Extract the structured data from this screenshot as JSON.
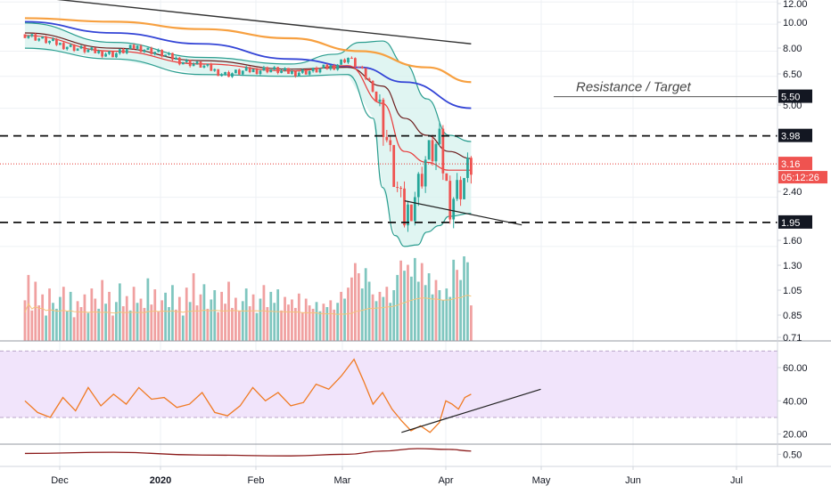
{
  "colors": {
    "background": "#ffffff",
    "grid": "#eef0f4",
    "axis_line": "#d1d4dc",
    "axis_text": "#131722",
    "up_candle": "#26a69a",
    "down_candle": "#ef5350",
    "vol_up": "#7fc6bf",
    "vol_down": "#f0a0a0",
    "ema_fast": "#e83a3a",
    "ema_slow": "#6b1c1c",
    "sma_100": "#3344d6",
    "sma_200": "#f7a040",
    "trend_long": "#333333",
    "bb_line": "#2a9d8f",
    "bb_fill": "#d6f2ee",
    "rsi_band": "#f1e4fb",
    "rsi_line": "#f07a22",
    "lower_osc": "#8b1a1a",
    "current_price_line": "#e53935",
    "label_black": "#131722",
    "label_red": "#ef5350"
  },
  "time_axis": {
    "labels": [
      "Dec",
      "2020",
      "Feb",
      "Mar",
      "Apr",
      "May",
      "Jun",
      "Jul"
    ]
  },
  "annotations": {
    "resistance_text": "Resistance / Target"
  },
  "chart_data": {
    "type": "candlestick",
    "symbol": "",
    "y_scale": "log",
    "price_range": [
      1.35,
      12.2
    ],
    "price_ticks": [
      "12.00",
      "10.00",
      "8.00",
      "6.50",
      "5.00",
      "2.40",
      "1.60",
      "1.30",
      "1.05",
      "0.85",
      "0.71"
    ],
    "price_labels": {
      "resistance": "5.50",
      "upper_level": "3.98",
      "current_price": "3.16",
      "countdown": "05:12:26",
      "lower_level": "1.95"
    },
    "horizontal_levels": [
      3.98,
      1.95
    ],
    "resistance_level": 5.5,
    "current_price": 3.16,
    "candles_x_range": [
      "2019-11-20",
      "2020-04-09"
    ],
    "close_path": [
      [
        "2019-11-20",
        9.2
      ],
      [
        "2019-11-27",
        8.7
      ],
      [
        "2019-12-04",
        8.3
      ],
      [
        "2019-12-11",
        8.0
      ],
      [
        "2019-12-18",
        7.8
      ],
      [
        "2019-12-25",
        8.3
      ],
      [
        "2020-01-01",
        7.9
      ],
      [
        "2020-01-08",
        7.4
      ],
      [
        "2020-01-15",
        7.1
      ],
      [
        "2020-01-22",
        6.6
      ],
      [
        "2020-01-29",
        6.8
      ],
      [
        "2020-02-05",
        6.9
      ],
      [
        "2020-02-12",
        6.7
      ],
      [
        "2020-02-19",
        6.8
      ],
      [
        "2020-02-26",
        7.1
      ],
      [
        "2020-03-01",
        7.6
      ],
      [
        "2020-03-05",
        6.9
      ],
      [
        "2020-03-09",
        5.9
      ],
      [
        "2020-03-12",
        4.6
      ],
      [
        "2020-03-16",
        2.7
      ],
      [
        "2020-03-19",
        2.0
      ],
      [
        "2020-03-23",
        2.6
      ],
      [
        "2020-03-26",
        3.4
      ],
      [
        "2020-03-30",
        3.7
      ],
      [
        "2020-04-02",
        2.3
      ],
      [
        "2020-04-06",
        2.7
      ],
      [
        "2020-04-09",
        3.16
      ]
    ],
    "ema_fast": [
      [
        "2019-11-20",
        9.1
      ],
      [
        "2019-12-18",
        8.0
      ],
      [
        "2020-01-15",
        7.2
      ],
      [
        "2020-02-12",
        6.8
      ],
      [
        "2020-03-01",
        7.1
      ],
      [
        "2020-03-12",
        5.2
      ],
      [
        "2020-03-19",
        3.5
      ],
      [
        "2020-03-26",
        3.2
      ],
      [
        "2020-04-02",
        3.0
      ],
      [
        "2020-04-09",
        3.0
      ]
    ],
    "ema_slow": [
      [
        "2019-11-20",
        9.3
      ],
      [
        "2019-12-18",
        8.2
      ],
      [
        "2020-01-15",
        7.4
      ],
      [
        "2020-02-12",
        6.9
      ],
      [
        "2020-03-01",
        7.0
      ],
      [
        "2020-03-12",
        6.0
      ],
      [
        "2020-03-19",
        4.6
      ],
      [
        "2020-03-26",
        4.0
      ],
      [
        "2020-04-02",
        3.5
      ],
      [
        "2020-04-09",
        3.3
      ]
    ],
    "sma_100": [
      [
        "2019-11-20",
        10.2
      ],
      [
        "2019-12-18",
        9.3
      ],
      [
        "2020-01-15",
        8.5
      ],
      [
        "2020-02-12",
        7.5
      ],
      [
        "2020-03-05",
        7.0
      ],
      [
        "2020-03-19",
        6.2
      ],
      [
        "2020-04-09",
        5.0
      ]
    ],
    "sma_200": [
      [
        "2019-11-20",
        10.5
      ],
      [
        "2019-12-18",
        10.2
      ],
      [
        "2020-01-15",
        9.6
      ],
      [
        "2020-02-12",
        8.9
      ],
      [
        "2020-03-05",
        8.0
      ],
      [
        "2020-03-26",
        7.0
      ],
      [
        "2020-04-09",
        6.2
      ]
    ],
    "long_trendline": [
      [
        "2019-11-20",
        12.8
      ],
      [
        "2020-04-09",
        8.5
      ]
    ],
    "bollinger_upper": [
      [
        "2019-11-20",
        10.1
      ],
      [
        "2019-12-18",
        8.6
      ],
      [
        "2020-01-15",
        7.6
      ],
      [
        "2020-02-12",
        7.2
      ],
      [
        "2020-02-26",
        7.8
      ],
      [
        "2020-03-05",
        8.6
      ],
      [
        "2020-03-12",
        8.7
      ],
      [
        "2020-03-19",
        7.2
      ],
      [
        "2020-03-26",
        5.4
      ],
      [
        "2020-04-02",
        4.0
      ],
      [
        "2020-04-09",
        3.8
      ]
    ],
    "bollinger_lower": [
      [
        "2019-11-20",
        8.2
      ],
      [
        "2019-12-18",
        7.5
      ],
      [
        "2020-01-15",
        6.6
      ],
      [
        "2020-02-12",
        6.5
      ],
      [
        "2020-03-01",
        6.6
      ],
      [
        "2020-03-09",
        4.6
      ],
      [
        "2020-03-12",
        2.6
      ],
      [
        "2020-03-16",
        1.75
      ],
      [
        "2020-03-19",
        1.6
      ],
      [
        "2020-03-23",
        1.62
      ],
      [
        "2020-03-26",
        1.8
      ],
      [
        "2020-03-30",
        1.9
      ],
      [
        "2020-04-02",
        2.05
      ],
      [
        "2020-04-09",
        2.1
      ]
    ],
    "price_trendline": [
      [
        "2020-03-19",
        2.33
      ],
      [
        "2020-04-25",
        1.91
      ]
    ],
    "volume": {
      "unit": "relative (0-1)",
      "values": [
        0.48,
        0.78,
        0.36,
        0.7,
        0.42,
        0.55,
        0.3,
        0.62,
        0.45,
        0.38,
        0.52,
        0.64,
        0.35,
        0.58,
        0.28,
        0.47,
        0.4,
        0.55,
        0.33,
        0.62,
        0.5,
        0.38,
        0.72,
        0.44,
        0.58,
        0.3,
        0.46,
        0.68,
        0.41,
        0.53,
        0.36,
        0.64,
        0.45,
        0.5,
        0.39,
        0.74,
        0.43,
        0.61,
        0.35,
        0.48,
        0.57,
        0.4,
        0.66,
        0.37,
        0.52,
        0.3,
        0.63,
        0.46,
        0.8,
        0.42,
        0.55,
        0.67,
        0.38,
        0.49,
        0.6,
        0.34,
        0.58,
        0.44,
        0.7,
        0.39,
        0.51,
        0.36,
        0.47,
        0.62,
        0.41,
        0.55,
        0.33,
        0.5,
        0.66,
        0.4,
        0.58,
        0.45,
        0.61,
        0.36,
        0.52,
        0.43,
        0.49,
        0.39,
        0.56,
        0.34,
        0.5,
        0.42,
        0.38,
        0.46,
        0.35,
        0.44,
        0.4,
        0.48,
        0.37,
        0.45,
        0.58,
        0.5,
        0.63,
        0.75,
        0.92,
        0.8,
        0.62,
        0.86,
        0.7,
        0.55,
        0.47,
        0.58,
        0.52,
        0.64,
        0.45,
        0.6,
        0.78,
        0.95,
        0.83,
        0.9,
        0.76,
        0.98,
        0.7,
        0.92,
        0.66,
        0.8,
        0.55,
        0.72,
        0.6,
        0.48,
        0.62,
        0.52,
        0.96,
        0.84,
        0.72,
        1.0,
        0.93,
        0.42
      ]
    },
    "rsi": {
      "range": [
        15,
        75
      ],
      "ticks": [
        "60.00",
        "40.00",
        "20.00"
      ],
      "upper_band": 70,
      "lower_band": 30,
      "values": [
        [
          "2019-11-20",
          40
        ],
        [
          "2019-11-24",
          33
        ],
        [
          "2019-11-28",
          30
        ],
        [
          "2019-12-02",
          42
        ],
        [
          "2019-12-06",
          34
        ],
        [
          "2019-12-10",
          48
        ],
        [
          "2019-12-14",
          37
        ],
        [
          "2019-12-18",
          44
        ],
        [
          "2019-12-22",
          38
        ],
        [
          "2019-12-26",
          48
        ],
        [
          "2019-12-30",
          41
        ],
        [
          "2020-01-03",
          42
        ],
        [
          "2020-01-07",
          36
        ],
        [
          "2020-01-11",
          38
        ],
        [
          "2020-01-15",
          45
        ],
        [
          "2020-01-19",
          33
        ],
        [
          "2020-01-23",
          31
        ],
        [
          "2020-01-27",
          37
        ],
        [
          "2020-01-31",
          48
        ],
        [
          "2020-02-04",
          40
        ],
        [
          "2020-02-08",
          45
        ],
        [
          "2020-02-12",
          37
        ],
        [
          "2020-02-16",
          39
        ],
        [
          "2020-02-20",
          50
        ],
        [
          "2020-02-24",
          47
        ],
        [
          "2020-02-28",
          55
        ],
        [
          "2020-03-03",
          65
        ],
        [
          "2020-03-06",
          52
        ],
        [
          "2020-03-09",
          38
        ],
        [
          "2020-03-12",
          45
        ],
        [
          "2020-03-15",
          35
        ],
        [
          "2020-03-18",
          28
        ],
        [
          "2020-03-21",
          22
        ],
        [
          "2020-03-24",
          25
        ],
        [
          "2020-03-27",
          21
        ],
        [
          "2020-03-30",
          27
        ],
        [
          "2020-04-01",
          40
        ],
        [
          "2020-04-03",
          38
        ],
        [
          "2020-04-05",
          35
        ],
        [
          "2020-04-07",
          42
        ],
        [
          "2020-04-09",
          44
        ]
      ],
      "trendline": [
        [
          "2020-03-18",
          21
        ],
        [
          "2020-05-01",
          47
        ]
      ]
    },
    "lower_oscillator": {
      "tick": "0.50",
      "range": [
        0.2,
        0.75
      ],
      "values": [
        [
          "2019-11-20",
          0.52
        ],
        [
          "2019-12-18",
          0.55
        ],
        [
          "2020-01-15",
          0.48
        ],
        [
          "2020-02-12",
          0.46
        ],
        [
          "2020-03-01",
          0.5
        ],
        [
          "2020-03-12",
          0.58
        ],
        [
          "2020-03-23",
          0.64
        ],
        [
          "2020-04-02",
          0.62
        ],
        [
          "2020-04-09",
          0.58
        ]
      ]
    }
  }
}
